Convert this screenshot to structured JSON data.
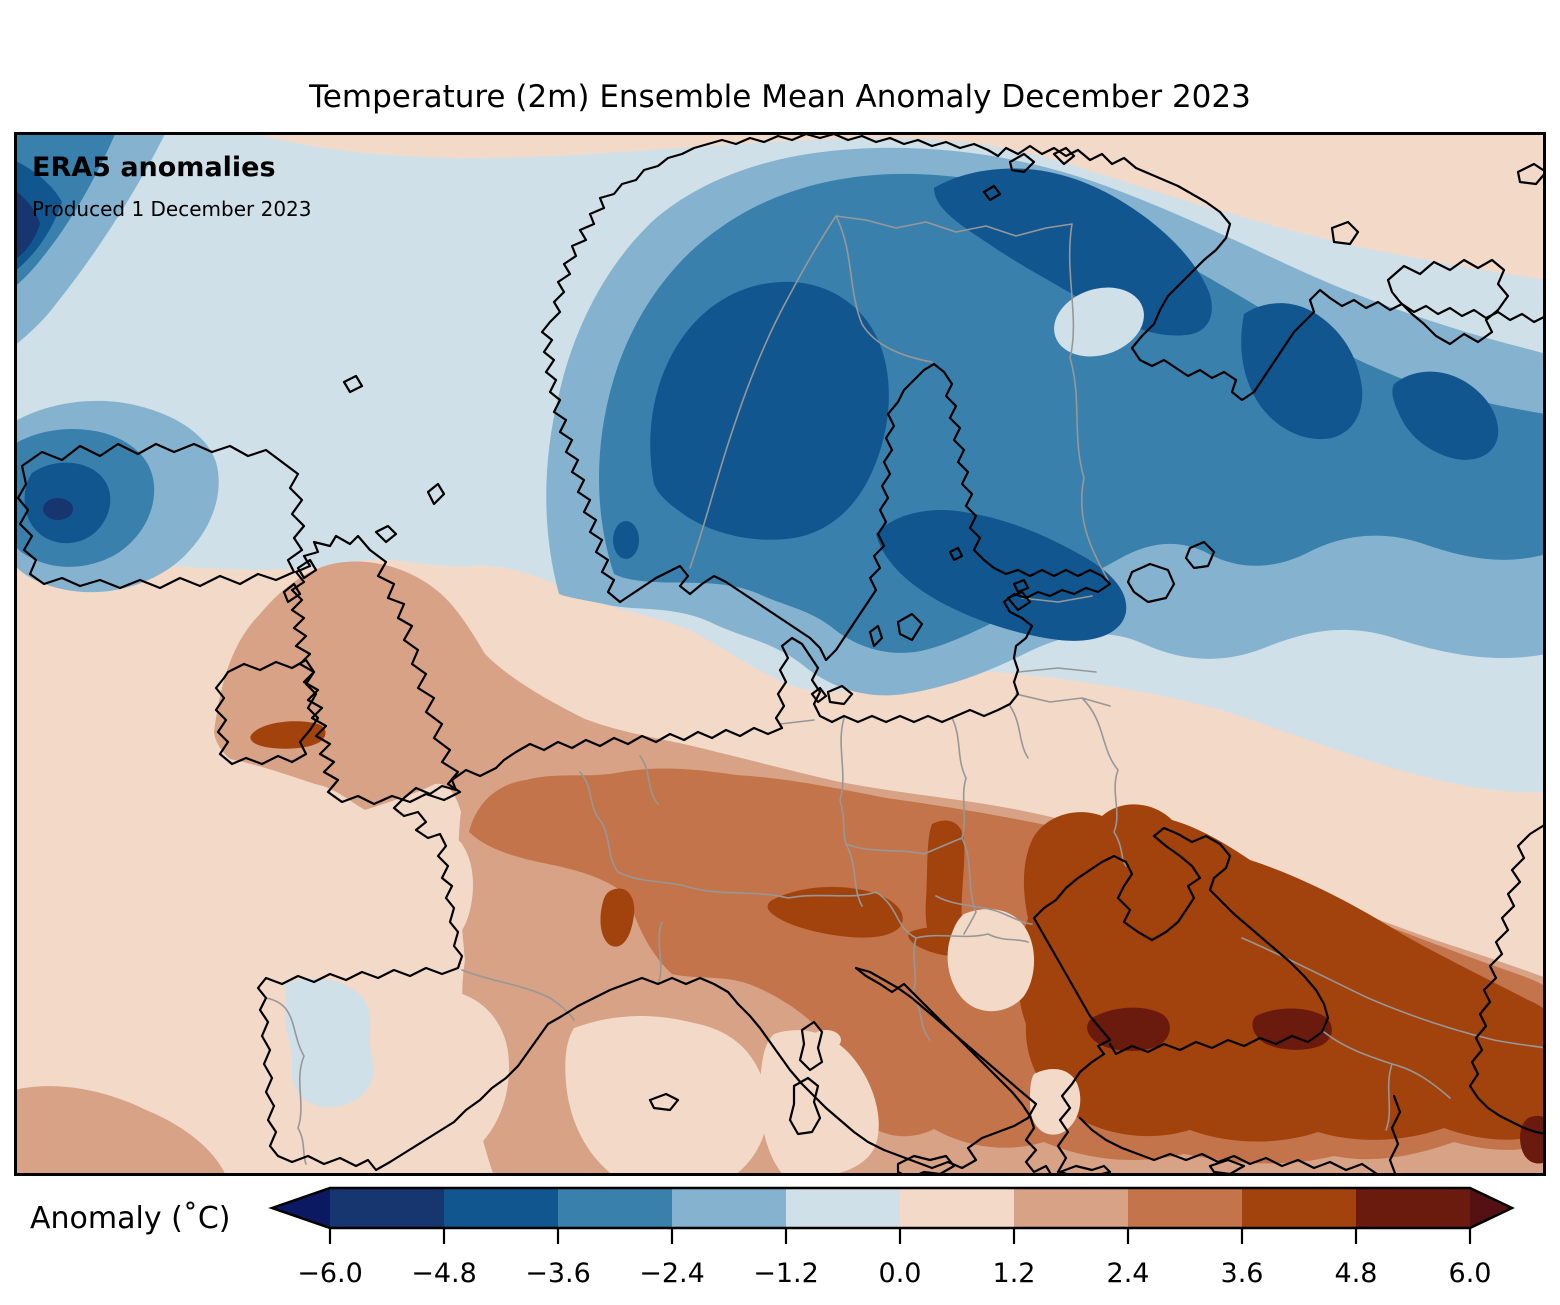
{
  "title": "Temperature (2m) Ensemble Mean Anomaly December 2023",
  "map_overlay": {
    "heading": "ERA5 anomalies",
    "produced": "Produced 1 December 2023"
  },
  "colorbar": {
    "label": "Anomaly (˚C)",
    "tick_labels": [
      "−6.0",
      "−4.8",
      "−3.6",
      "−2.4",
      "−1.2",
      "0.0",
      "1.2",
      "2.4",
      "3.6",
      "4.8",
      "6.0"
    ],
    "levels_celsius": [
      -6.0,
      -4.8,
      -3.6,
      -2.4,
      -1.2,
      0.0,
      1.2,
      2.4,
      3.6,
      4.8,
      6.0
    ],
    "palette": [
      {
        "value_range": "< −6.0",
        "color": "#0b1862"
      },
      {
        "value_range": "−6.0 to −4.8",
        "color": "#17356e"
      },
      {
        "value_range": "−4.8 to −3.6",
        "color": "#11568f"
      },
      {
        "value_range": "−3.6 to −2.4",
        "color": "#3a80ad"
      },
      {
        "value_range": "−2.4 to −1.2",
        "color": "#85b3cf"
      },
      {
        "value_range": "−1.2 to 0.0",
        "color": "#d0e0e9"
      },
      {
        "value_range": "0.0 to 1.2",
        "color": "#f2d9c8"
      },
      {
        "value_range": "1.2 to 2.4",
        "color": "#d7a285"
      },
      {
        "value_range": "2.4 to 3.6",
        "color": "#c3744a"
      },
      {
        "value_range": "3.6 to 4.8",
        "color": "#a2420c"
      },
      {
        "value_range": "4.8 to 6.0",
        "color": "#6b1a0e"
      },
      {
        "value_range": "> 6.0",
        "color": "#551013"
      }
    ]
  },
  "chart_data": {
    "type": "heatmap",
    "subtype": "filled-contour anomaly map over Europe / North Atlantic",
    "title": "Temperature (2m) Ensemble Mean Anomaly December 2023",
    "colorbar_label": "Anomaly (˚C)",
    "units": "degrees Celsius",
    "contour_levels": [
      -6.0,
      -4.8,
      -3.6,
      -2.4,
      -1.2,
      0.0,
      1.2,
      2.4,
      3.6,
      4.8,
      6.0
    ],
    "legend_position": "bottom horizontal colorbar with out-of-range arrows",
    "depicted_pattern": [
      {
        "area": "Scandinavia and Finland",
        "anomaly_c": -4.5
      },
      {
        "area": "Kola peninsula / Barents coast",
        "anomaly_c": -4.0
      },
      {
        "area": "Iceland",
        "anomaly_c": -4.0
      },
      {
        "area": "North Atlantic / Norwegian Sea",
        "anomaly_c": -1.0
      },
      {
        "area": "British Isles",
        "anomaly_c": 2.0
      },
      {
        "area": "Central Europe (France, Germany, Benelux)",
        "anomaly_c": 3.0
      },
      {
        "area": "Iberia interior",
        "anomaly_c": -0.5
      },
      {
        "area": "Balkans (Bosnia/Serbia)",
        "anomaly_c": 4.0
      },
      {
        "area": "Ukraine / north of Black Sea",
        "anomaly_c": 4.0
      },
      {
        "area": "Eastern Anatolia / Caucasus",
        "anomaly_c": 5.5
      },
      {
        "area": "Mediterranean",
        "anomaly_c": 1.0
      }
    ]
  }
}
